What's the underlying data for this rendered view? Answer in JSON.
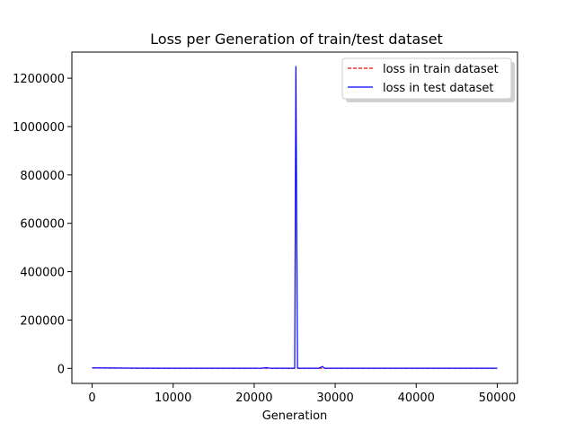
{
  "chart_data": {
    "type": "line",
    "title": "Loss per Generation of train/test dataset",
    "xlabel": "Generation",
    "ylabel": "",
    "xlim": [
      -2500,
      52500
    ],
    "ylim": [
      -62000,
      1308000
    ],
    "xticks": [
      0,
      10000,
      20000,
      30000,
      40000,
      50000
    ],
    "xtick_labels": [
      "0",
      "10000",
      "20000",
      "30000",
      "40000",
      "50000"
    ],
    "yticks": [
      0,
      200000,
      400000,
      600000,
      800000,
      1000000,
      1200000
    ],
    "ytick_labels": [
      "0",
      "200000",
      "400000",
      "600000",
      "800000",
      "1000000",
      "1200000"
    ],
    "grid": false,
    "legend_position": "top-right",
    "series": [
      {
        "name": "loss in train dataset",
        "color": "#ff0000",
        "linestyle": "dashed",
        "x": [
          0,
          5000,
          10000,
          15000,
          20000,
          25000,
          25300,
          28500,
          30000,
          35000,
          40000,
          45000,
          50000
        ],
        "y": [
          1500,
          800,
          600,
          500,
          500,
          500,
          500,
          500,
          500,
          400,
          400,
          400,
          400
        ]
      },
      {
        "name": "loss in test dataset",
        "color": "#0000ff",
        "linestyle": "solid",
        "x": [
          0,
          5000,
          10000,
          15000,
          20000,
          21000,
          21500,
          22000,
          25000,
          25150,
          25250,
          25350,
          25500,
          28000,
          28450,
          28550,
          28700,
          30000,
          35000,
          40000,
          45000,
          50000
        ],
        "y": [
          2000,
          1000,
          800,
          700,
          700,
          1200,
          3000,
          800,
          800,
          1248000,
          600000,
          3000,
          800,
          800,
          8000,
          4000,
          800,
          700,
          600,
          600,
          600,
          600
        ]
      }
    ]
  }
}
